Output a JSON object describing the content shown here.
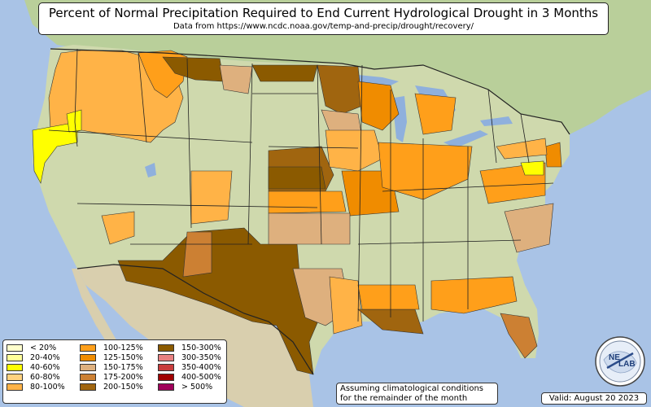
{
  "title": "Percent of Normal Precipitation Required to End Current Hydrological Drought in 3 Months",
  "subtitle": "Data from https://www.ncdc.noaa.gov/temp-and-precip/drought/recovery/",
  "note_line1": "Assuming climatological conditions",
  "note_line2": "for the remainder of the month",
  "valid_text": "Valid: August 20 2023",
  "logo_text": {
    "ne": "NE",
    "lab": "LAB"
  },
  "legend": [
    {
      "label": "< 20%",
      "color": "#ffffcc"
    },
    {
      "label": "20-40%",
      "color": "#ffff99"
    },
    {
      "label": "40-60%",
      "color": "#ffff00"
    },
    {
      "label": "60-80%",
      "color": "#ffd27f"
    },
    {
      "label": "80-100%",
      "color": "#ffb347"
    },
    {
      "label": "100-125%",
      "color": "#ff9f1a"
    },
    {
      "label": "125-150%",
      "color": "#f08c00"
    },
    {
      "label": "150-175%",
      "color": "#deb07e"
    },
    {
      "label": "175-200%",
      "color": "#cc8033"
    },
    {
      "label": "200-150%",
      "color": "#a0650f"
    },
    {
      "label": "150-300%",
      "color": "#8b5a00"
    },
    {
      "label": "300-350%",
      "color": "#e88080"
    },
    {
      "label": "350-400%",
      "color": "#c83c3c"
    },
    {
      "label": "400-500%",
      "color": "#a00000"
    },
    {
      "label": "> 500%",
      "color": "#a0005a"
    }
  ],
  "colors": {
    "ocean": "#a9c3e6",
    "land": "#cfd9ad",
    "land_north": "#b9cf9a",
    "mexico": "#d9cfae",
    "lake": "#8fb0dd",
    "border": "#222222"
  }
}
